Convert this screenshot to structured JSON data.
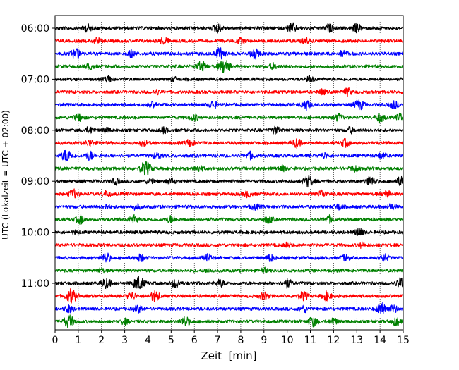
{
  "chart_data": {
    "type": "line",
    "xlabel": "Zeit  [min]",
    "ylabel": "UTC (Lokalzeit = UTC + 02:00)",
    "xlim": [
      0,
      15
    ],
    "x_ticks": [
      "0",
      "1",
      "2",
      "3",
      "4",
      "5",
      "6",
      "7",
      "8",
      "9",
      "10",
      "11",
      "12",
      "13",
      "14",
      "15"
    ],
    "y_ticks": [
      {
        "label": "06:00",
        "trace": 0
      },
      {
        "label": "07:00",
        "trace": 4
      },
      {
        "label": "08:00",
        "trace": 8
      },
      {
        "label": "09:00",
        "trace": 12
      },
      {
        "label": "10:00",
        "trace": 16
      },
      {
        "label": "11:00",
        "trace": 20
      }
    ],
    "grid": "vertical dotted lines at every minute",
    "trace_interval_min": 15,
    "trace_colors": [
      "#000000",
      "#ff0000",
      "#0000ff",
      "#008000"
    ],
    "traces": [
      {
        "start": "06:00",
        "bursts": [
          [
            1.4,
            0.5
          ],
          [
            7.0,
            0.6
          ],
          [
            10.2,
            0.7
          ],
          [
            11.8,
            0.5
          ],
          [
            13.0,
            0.6
          ]
        ]
      },
      {
        "start": "06:15",
        "bursts": [
          [
            1.8,
            0.4
          ],
          [
            4.7,
            0.5
          ],
          [
            8.0,
            0.4
          ],
          [
            10.8,
            0.4
          ]
        ]
      },
      {
        "start": "06:30",
        "bursts": [
          [
            0.9,
            0.8
          ],
          [
            3.3,
            0.5
          ],
          [
            7.1,
            0.8
          ],
          [
            8.6,
            0.7
          ],
          [
            12.4,
            0.4
          ]
        ]
      },
      {
        "start": "06:45",
        "bursts": [
          [
            6.3,
            0.7
          ],
          [
            7.3,
            1.0
          ],
          [
            1.5,
            0.4
          ],
          [
            9.4,
            0.4
          ]
        ]
      },
      {
        "start": "07:00",
        "bursts": [
          [
            2.3,
            0.4
          ],
          [
            5.1,
            0.3
          ],
          [
            11.0,
            0.4
          ]
        ]
      },
      {
        "start": "07:15",
        "bursts": [
          [
            11.5,
            0.4
          ],
          [
            12.6,
            0.5
          ],
          [
            4.4,
            0.3
          ]
        ]
      },
      {
        "start": "07:30",
        "bursts": [
          [
            4.2,
            0.4
          ],
          [
            6.8,
            0.5
          ],
          [
            10.8,
            0.7
          ],
          [
            13.1,
            0.7
          ],
          [
            14.6,
            0.5
          ]
        ]
      },
      {
        "start": "07:45",
        "bursts": [
          [
            1.0,
            0.5
          ],
          [
            6.0,
            0.4
          ],
          [
            12.2,
            0.5
          ],
          [
            14.0,
            0.6
          ],
          [
            14.9,
            0.6
          ]
        ]
      },
      {
        "start": "08:00",
        "bursts": [
          [
            1.5,
            0.5
          ],
          [
            2.2,
            0.4
          ],
          [
            4.7,
            0.4
          ],
          [
            9.5,
            0.5
          ],
          [
            12.7,
            0.4
          ]
        ]
      },
      {
        "start": "08:15",
        "bursts": [
          [
            1.5,
            0.5
          ],
          [
            3.8,
            0.4
          ],
          [
            5.8,
            0.5
          ],
          [
            10.4,
            0.6
          ],
          [
            12.5,
            0.5
          ]
        ]
      },
      {
        "start": "08:30",
        "bursts": [
          [
            0.5,
            0.9
          ],
          [
            1.5,
            0.6
          ],
          [
            4.4,
            0.5
          ],
          [
            8.4,
            0.5
          ],
          [
            11.6,
            0.4
          ],
          [
            14.1,
            0.4
          ]
        ]
      },
      {
        "start": "08:45",
        "bursts": [
          [
            3.9,
            1.0
          ],
          [
            6.2,
            0.4
          ],
          [
            9.8,
            0.4
          ],
          [
            12.9,
            0.4
          ]
        ]
      },
      {
        "start": "09:00",
        "bursts": [
          [
            2.6,
            0.4
          ],
          [
            4.1,
            0.4
          ],
          [
            5.0,
            0.4
          ],
          [
            10.9,
            0.8
          ],
          [
            13.6,
            0.7
          ],
          [
            14.9,
            0.6
          ]
        ]
      },
      {
        "start": "09:15",
        "bursts": [
          [
            0.8,
            0.6
          ],
          [
            2.2,
            0.4
          ],
          [
            8.3,
            0.4
          ],
          [
            11.5,
            0.5
          ],
          [
            14.3,
            0.4
          ]
        ]
      },
      {
        "start": "09:30",
        "bursts": [
          [
            2.2,
            0.3
          ],
          [
            3.5,
            0.4
          ],
          [
            8.6,
            0.4
          ],
          [
            12.2,
            0.4
          ],
          [
            14.5,
            0.4
          ]
        ]
      },
      {
        "start": "09:45",
        "bursts": [
          [
            1.1,
            0.6
          ],
          [
            3.4,
            0.6
          ],
          [
            5.0,
            0.5
          ],
          [
            9.2,
            0.5
          ],
          [
            11.8,
            0.5
          ]
        ]
      },
      {
        "start": "10:00",
        "bursts": [
          [
            13.1,
            0.6
          ],
          [
            0.9,
            0.2
          ]
        ]
      },
      {
        "start": "10:15",
        "bursts": [
          [
            10.0,
            0.3
          ],
          [
            13.2,
            0.3
          ]
        ]
      },
      {
        "start": "10:30",
        "bursts": [
          [
            2.2,
            0.7
          ],
          [
            3.7,
            0.5
          ],
          [
            6.6,
            0.5
          ],
          [
            9.3,
            0.5
          ],
          [
            12.5,
            0.4
          ],
          [
            14.2,
            0.5
          ]
        ]
      },
      {
        "start": "10:45",
        "bursts": [
          [
            2.0,
            0.3
          ],
          [
            6.6,
            0.3
          ],
          [
            9.0,
            0.3
          ]
        ]
      },
      {
        "start": "11:00",
        "bursts": [
          [
            2.2,
            0.7
          ],
          [
            3.6,
            1.0
          ],
          [
            5.2,
            0.6
          ],
          [
            7.1,
            0.5
          ],
          [
            10.0,
            0.6
          ],
          [
            14.9,
            0.7
          ]
        ]
      },
      {
        "start": "11:15",
        "bursts": [
          [
            0.7,
            1.0
          ],
          [
            3.3,
            0.5
          ],
          [
            4.3,
            0.7
          ],
          [
            9.0,
            0.5
          ],
          [
            10.7,
            0.6
          ],
          [
            11.7,
            0.6
          ]
        ]
      },
      {
        "start": "11:30",
        "bursts": [
          [
            0.6,
            0.5
          ],
          [
            3.6,
            0.5
          ],
          [
            10.7,
            0.5
          ],
          [
            14.1,
            0.9
          ],
          [
            14.6,
            0.5
          ]
        ]
      },
      {
        "start": "11:45",
        "bursts": [
          [
            0.6,
            0.9
          ],
          [
            3.0,
            0.4
          ],
          [
            5.6,
            0.7
          ],
          [
            11.1,
            0.7
          ],
          [
            12.0,
            0.5
          ],
          [
            14.7,
            0.5
          ]
        ]
      }
    ]
  }
}
